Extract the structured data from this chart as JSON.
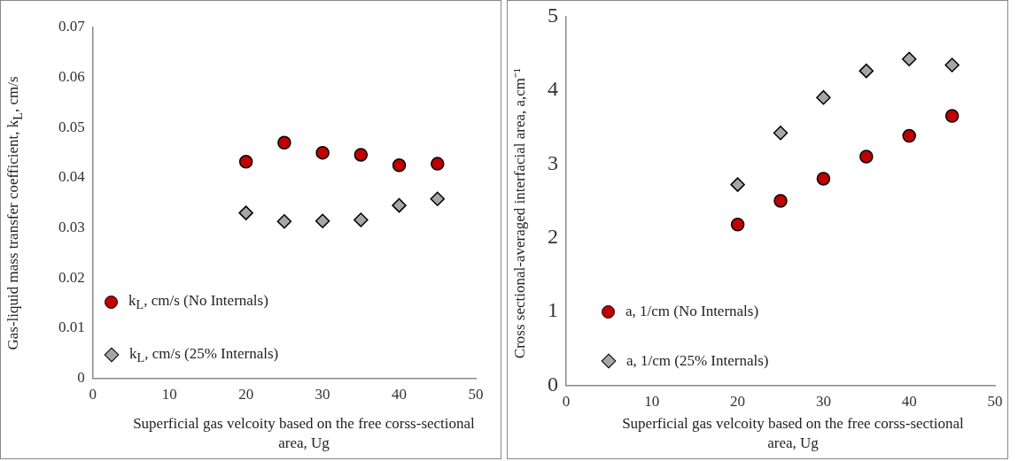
{
  "chart_data": [
    {
      "type": "scatter",
      "xlabel": "Superficial gas velcoity based on the free corss-sectional area, Ug",
      "ylabel": "Gas-liquid mass transfer coefficient, k$_{L}$, cm/s",
      "x": [
        20,
        25,
        30,
        35,
        40,
        45
      ],
      "series": [
        {
          "name": "k$_{L}$, cm/s (No Internals)",
          "color": "#c00000",
          "marker": "circle",
          "values": [
            0.0432,
            0.047,
            0.045,
            0.0446,
            0.0425,
            0.0428
          ]
        },
        {
          "name": "k$_{L}$, cm/s (25% Internals)",
          "color": "#a6a6a6",
          "marker": "diamond",
          "values": [
            0.033,
            0.0313,
            0.0314,
            0.0316,
            0.0345,
            0.0358
          ]
        }
      ],
      "xlim": [
        0,
        50
      ],
      "xticks": [
        0,
        10,
        20,
        30,
        40,
        50
      ],
      "ylim": [
        0,
        0.07
      ],
      "yticks": [
        0,
        0.01,
        0.02,
        0.03,
        0.04,
        0.05,
        0.06,
        0.07
      ],
      "grid": false,
      "legend": "bottom left"
    },
    {
      "type": "scatter",
      "xlabel": "Superficial gas velcoity based on the free corss-sectional area, Ug",
      "ylabel": "Cross sectional-averaged interfacial area, a,cm⁻¹",
      "x": [
        20,
        25,
        30,
        35,
        40,
        45
      ],
      "series": [
        {
          "name": "a, 1/cm (No Internals)",
          "color": "#c00000",
          "marker": "circle",
          "values": [
            2.18,
            2.5,
            2.8,
            3.1,
            3.38,
            3.65
          ]
        },
        {
          "name": "a, 1/cm (25% Internals)",
          "color": "#a6a6a6",
          "marker": "diamond",
          "values": [
            2.72,
            3.42,
            3.9,
            4.26,
            4.42,
            4.34
          ]
        }
      ],
      "xlim": [
        0,
        50
      ],
      "xticks": [
        0,
        10,
        20,
        30,
        40,
        50
      ],
      "ylim": [
        0,
        5
      ],
      "yticks": [
        0,
        1,
        2,
        3,
        4,
        5
      ],
      "grid": false,
      "legend": "bottom left"
    }
  ]
}
